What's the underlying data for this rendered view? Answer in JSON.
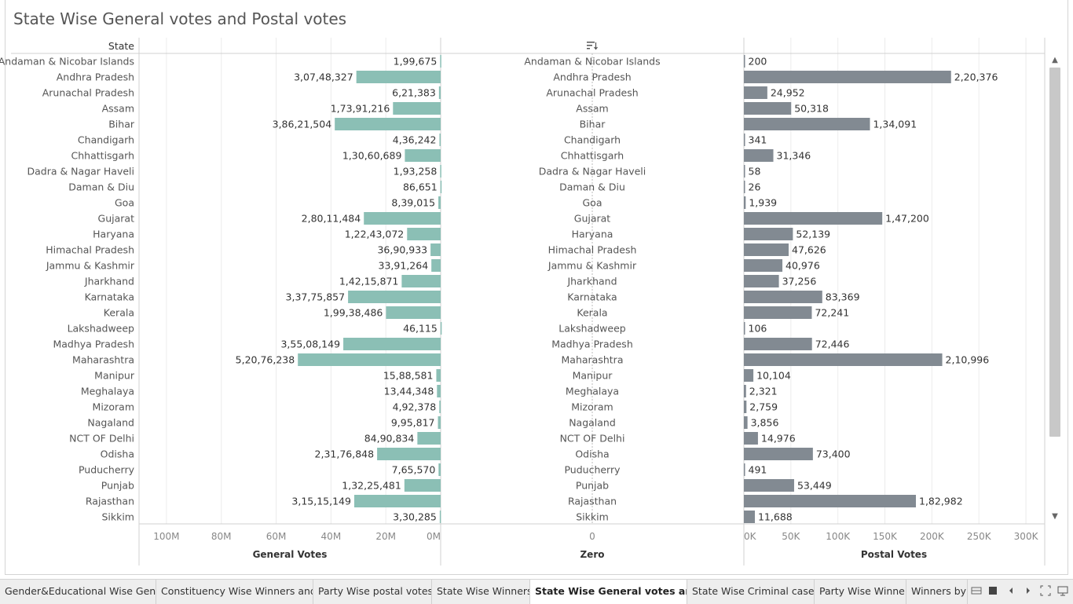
{
  "title": "State Wise General votes  and Postal votes",
  "header": {
    "state_col": "State",
    "sort_icon": "sort-descending-icon"
  },
  "colors": {
    "general_bar": "#8bbfb5",
    "postal_bar": "#828a92",
    "grid": "#ececec",
    "axis_text": "#888888"
  },
  "chart_data": {
    "type": "bar",
    "orientation": "horizontal",
    "categories": [
      "Andaman & Nicobar Islands",
      "Andhra Pradesh",
      "Arunachal Pradesh",
      "Assam",
      "Bihar",
      "Chandigarh",
      "Chhattisgarh",
      "Dadra & Nagar Haveli",
      "Daman & Diu",
      "Goa",
      "Gujarat",
      "Haryana",
      "Himachal Pradesh",
      "Jammu & Kashmir",
      "Jharkhand",
      "Karnataka",
      "Kerala",
      "Lakshadweep",
      "Madhya Pradesh",
      "Maharashtra",
      "Manipur",
      "Meghalaya",
      "Mizoram",
      "Nagaland",
      "NCT OF Delhi",
      "Odisha",
      "Puducherry",
      "Punjab",
      "Rajasthan",
      "Sikkim"
    ],
    "series": [
      {
        "name": "General Votes",
        "values": [
          199675,
          30748327,
          621383,
          17391216,
          38621504,
          436242,
          13060689,
          193258,
          86651,
          839015,
          28011484,
          12243072,
          3690933,
          3391264,
          14215871,
          33775857,
          19938486,
          46115,
          35508149,
          52076238,
          1588581,
          1344348,
          492378,
          995817,
          8490834,
          23176848,
          765570,
          13225481,
          31515149,
          330285
        ],
        "labels": [
          "1,99,675",
          "3,07,48,327",
          "6,21,383",
          "1,73,91,216",
          "3,86,21,504",
          "4,36,242",
          "1,30,60,689",
          "1,93,258",
          "86,651",
          "8,39,015",
          "2,80,11,484",
          "1,22,43,072",
          "36,90,933",
          "33,91,264",
          "1,42,15,871",
          "3,37,75,857",
          "1,99,38,486",
          "46,115",
          "3,55,08,149",
          "5,20,76,238",
          "15,88,581",
          "13,44,348",
          "4,92,378",
          "9,95,817",
          "84,90,834",
          "2,31,76,848",
          "7,65,570",
          "1,32,25,481",
          "3,15,15,149",
          "3,30,285"
        ],
        "axis_ticks": [
          "100M",
          "80M",
          "60M",
          "40M",
          "20M",
          "0M"
        ],
        "xlim": [
          0,
          110000000
        ],
        "reversed": true
      },
      {
        "name": "Postal Votes",
        "values": [
          200,
          220376,
          24952,
          50318,
          134091,
          341,
          31346,
          58,
          26,
          1939,
          147200,
          52139,
          47626,
          40976,
          37256,
          83369,
          72241,
          106,
          72446,
          210996,
          10104,
          2321,
          2759,
          3856,
          14976,
          73400,
          491,
          53449,
          182982,
          11688
        ],
        "labels": [
          "200",
          "2,20,376",
          "24,952",
          "50,318",
          "1,34,091",
          "341",
          "31,346",
          "58",
          "26",
          "1,939",
          "1,47,200",
          "52,139",
          "47,626",
          "40,976",
          "37,256",
          "83,369",
          "72,241",
          "106",
          "72,446",
          "2,10,996",
          "10,104",
          "2,321",
          "2,759",
          "3,856",
          "14,976",
          "73,400",
          "491",
          "53,449",
          "1,82,982",
          "11,688"
        ],
        "axis_ticks": [
          "0K",
          "50K",
          "100K",
          "150K",
          "200K",
          "250K",
          "300K"
        ],
        "xlim": [
          0,
          320000
        ]
      }
    ],
    "middle": {
      "label": "Zero",
      "tick": "0"
    },
    "xlabels": [
      "General Votes",
      "Zero",
      "Postal Votes"
    ],
    "grid": true
  },
  "tabs": [
    "Gender&Educational Wise Gene...",
    "Constituency Wise Winners and ...",
    "Party Wise postal votes",
    "State Wise Winners",
    "State Wise General votes  and ...",
    "State Wise Criminal cases",
    "Party Wise Winner",
    "Winners by"
  ],
  "active_tab": 4,
  "tab_controls": [
    "filmstrip-icon",
    "tabs-icon",
    "prev-icon",
    "next-icon",
    "fit-icon",
    "present-icon"
  ],
  "scroll": {
    "up": "▲",
    "down": "▼"
  }
}
